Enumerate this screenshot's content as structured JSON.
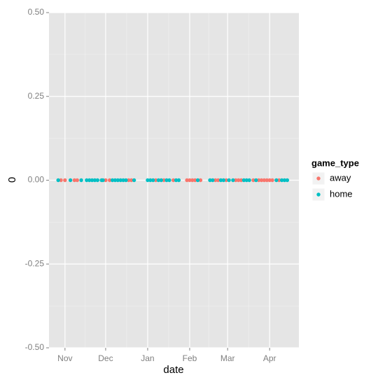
{
  "chart_data": {
    "type": "scatter",
    "x_label": "date",
    "y_label": "0",
    "legend_title": "game_type",
    "xlim": [
      -11.8,
      172.6
    ],
    "xticks": [
      {
        "value": 0,
        "label": "Nov"
      },
      {
        "value": 30,
        "label": "Dec"
      },
      {
        "value": 61,
        "label": "Jan"
      },
      {
        "value": 92,
        "label": "Feb"
      },
      {
        "value": 120,
        "label": "Mar"
      },
      {
        "value": 151,
        "label": "Apr"
      }
    ],
    "ylim": [
      -0.5,
      0.5
    ],
    "yticks": [
      {
        "value": -0.5,
        "label": "-0.50"
      },
      {
        "value": -0.25,
        "label": "-0.25"
      },
      {
        "value": 0,
        "label": "0.00"
      },
      {
        "value": 0.25,
        "label": "0.25"
      },
      {
        "value": 0.5,
        "label": "0.50"
      }
    ],
    "grid": true,
    "series": [
      {
        "name": "away",
        "color": "#F8766D",
        "x": [
          -3,
          0,
          7,
          9,
          30,
          33,
          47,
          49,
          67,
          73,
          80,
          90,
          92,
          94,
          96,
          100,
          111,
          113,
          119,
          126,
          128,
          130,
          139,
          143,
          145,
          147,
          149,
          151,
          153,
          158
        ],
        "values": [
          0,
          0,
          0,
          0,
          0,
          0,
          0,
          0,
          0,
          0,
          0,
          0,
          0,
          0,
          0,
          0,
          0,
          0,
          0,
          0,
          0,
          0,
          0,
          0,
          0,
          0,
          0,
          0,
          0,
          0
        ]
      },
      {
        "name": "home",
        "color": "#00BFC4",
        "x": [
          -5,
          4,
          12,
          16,
          18,
          20,
          22,
          24,
          27,
          28,
          35,
          37,
          39,
          41,
          43,
          45,
          51,
          61,
          63,
          65,
          69,
          71,
          75,
          77,
          82,
          84,
          98,
          107,
          109,
          115,
          117,
          121,
          124,
          132,
          134,
          136,
          141,
          156,
          160,
          162,
          164
        ],
        "values": [
          0,
          0,
          0,
          0,
          0,
          0,
          0,
          0,
          0,
          0,
          0,
          0,
          0,
          0,
          0,
          0,
          0,
          0,
          0,
          0,
          0,
          0,
          0,
          0,
          0,
          0,
          0,
          0,
          0,
          0,
          0,
          0,
          0,
          0,
          0,
          0,
          0,
          0,
          0,
          0,
          0
        ]
      }
    ]
  }
}
